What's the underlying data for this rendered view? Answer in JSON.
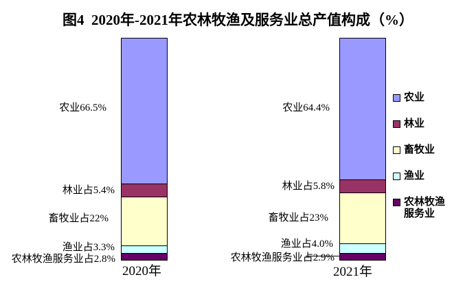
{
  "chart_data": {
    "type": "bar",
    "stacked": true,
    "title": "图4  2020年-2021年农林牧渔及服务业总产值构成（%）",
    "categories": [
      "2020年",
      "2021年"
    ],
    "series": [
      {
        "key": "agriculture",
        "name": "农业",
        "color": "#9999FF",
        "values": [
          66.5,
          64.4
        ]
      },
      {
        "key": "forestry",
        "name": "林业",
        "color": "#993366",
        "values": [
          5.4,
          5.8
        ]
      },
      {
        "key": "husbandry",
        "name": "畜牧业",
        "color": "#FFFFCC",
        "values": [
          22,
          23
        ]
      },
      {
        "key": "fishery",
        "name": "渔业",
        "color": "#CCFFFF",
        "values": [
          3.3,
          4.0
        ]
      },
      {
        "key": "services",
        "name": "农林牧渔服务业",
        "color": "#660066",
        "values": [
          2.8,
          2.9
        ]
      }
    ],
    "data_labels": {
      "y2020": [
        "农业66.5%",
        "林业占5.4%",
        "畜牧业占22%",
        "渔业占3.3%",
        "农林牧渔服务业占2.8%"
      ],
      "y2021": [
        "农业64.4%",
        "林业占5.8%",
        "畜牧业占23%",
        "渔业占4.0%",
        "农林牧渔服务业占2.9%"
      ]
    },
    "ylim": [
      0,
      100
    ],
    "grid": false,
    "legend_position": "right"
  },
  "colors": {
    "background": "#FFFFFF",
    "text": "#000000",
    "bar_border": "#000000"
  }
}
